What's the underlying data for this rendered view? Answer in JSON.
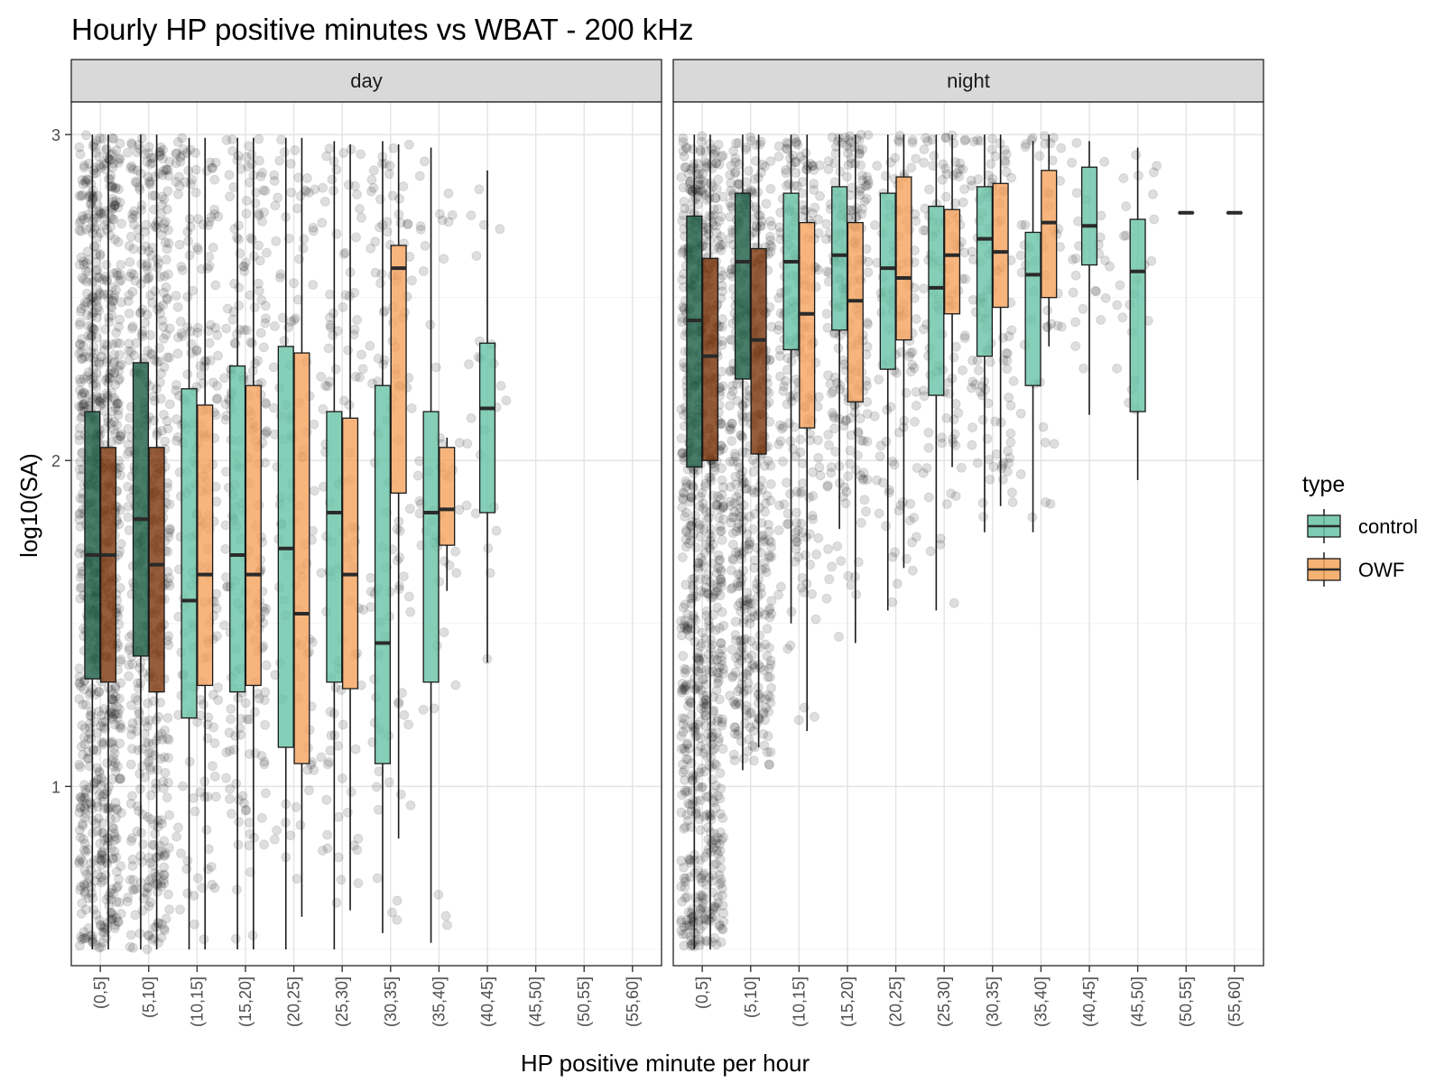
{
  "chart_data": {
    "type": "box",
    "title": "Hourly HP positive minutes vs WBAT - 200 kHz",
    "xlabel": "HP positive minute per hour",
    "ylabel": "log10(SA)",
    "ylim": [
      0.45,
      3.1
    ],
    "y_ticks": [
      1,
      2,
      3
    ],
    "categories": [
      "(0,5]",
      "(5,10]",
      "(10,15]",
      "(15,20]",
      "(20,25]",
      "(25,30]",
      "(30,35]",
      "(35,40]",
      "(40,45]",
      "(45,50]",
      "(50,55]",
      "(55,60]"
    ],
    "grid": true,
    "jitter_points": true,
    "legend": {
      "title": "type",
      "position": "right",
      "entries": [
        {
          "name": "control",
          "color": "#66c2a5"
        },
        {
          "name": "OWF",
          "color": "#f5a35c"
        }
      ]
    },
    "panels": [
      {
        "name": "day",
        "series": [
          {
            "name": "control",
            "boxes": [
              {
                "cat": "(0,5]",
                "min": 0.5,
                "q1": 1.33,
                "median": 1.71,
                "q3": 2.15,
                "max": 3.0
              },
              {
                "cat": "(5,10]",
                "min": 0.5,
                "q1": 1.4,
                "median": 1.82,
                "q3": 2.3,
                "max": 3.0
              },
              {
                "cat": "(10,15]",
                "min": 0.5,
                "q1": 1.21,
                "median": 1.57,
                "q3": 2.22,
                "max": 2.99
              },
              {
                "cat": "(15,20]",
                "min": 0.5,
                "q1": 1.29,
                "median": 1.71,
                "q3": 2.29,
                "max": 2.99
              },
              {
                "cat": "(20,25]",
                "min": 0.5,
                "q1": 1.12,
                "median": 1.73,
                "q3": 2.35,
                "max": 2.99
              },
              {
                "cat": "(25,30]",
                "min": 0.5,
                "q1": 1.32,
                "median": 1.84,
                "q3": 2.15,
                "max": 2.98
              },
              {
                "cat": "(30,35]",
                "min": 0.55,
                "q1": 1.07,
                "median": 1.44,
                "q3": 2.23,
                "max": 2.98
              },
              {
                "cat": "(35,40]",
                "min": 0.52,
                "q1": 1.32,
                "median": 1.84,
                "q3": 2.15,
                "max": 2.96
              },
              {
                "cat": "(40,45]",
                "min": 1.38,
                "q1": 1.84,
                "median": 2.16,
                "q3": 2.36,
                "max": 2.89
              }
            ]
          },
          {
            "name": "OWF",
            "boxes": [
              {
                "cat": "(0,5]",
                "min": 0.5,
                "q1": 1.32,
                "median": 1.71,
                "q3": 2.04,
                "max": 3.0
              },
              {
                "cat": "(5,10]",
                "min": 0.5,
                "q1": 1.29,
                "median": 1.68,
                "q3": 2.04,
                "max": 3.0
              },
              {
                "cat": "(10,15]",
                "min": 0.5,
                "q1": 1.31,
                "median": 1.65,
                "q3": 2.17,
                "max": 2.99
              },
              {
                "cat": "(15,20]",
                "min": 0.5,
                "q1": 1.31,
                "median": 1.65,
                "q3": 2.23,
                "max": 2.99
              },
              {
                "cat": "(20,25]",
                "min": 0.6,
                "q1": 1.07,
                "median": 1.53,
                "q3": 2.33,
                "max": 2.99
              },
              {
                "cat": "(25,30]",
                "min": 0.62,
                "q1": 1.3,
                "median": 1.65,
                "q3": 2.13,
                "max": 2.97
              },
              {
                "cat": "(30,35]",
                "min": 0.84,
                "q1": 1.9,
                "median": 2.59,
                "q3": 2.66,
                "max": 2.97
              },
              {
                "cat": "(35,40]",
                "min": 1.6,
                "q1": 1.74,
                "median": 1.85,
                "q3": 2.04,
                "max": 2.07
              }
            ]
          }
        ]
      },
      {
        "name": "night",
        "series": [
          {
            "name": "control",
            "boxes": [
              {
                "cat": "(0,5]",
                "min": 0.5,
                "q1": 1.98,
                "median": 2.43,
                "q3": 2.75,
                "max": 3.0
              },
              {
                "cat": "(5,10]",
                "min": 1.05,
                "q1": 2.25,
                "median": 2.61,
                "q3": 2.82,
                "max": 3.0
              },
              {
                "cat": "(10,15]",
                "min": 1.5,
                "q1": 2.34,
                "median": 2.61,
                "q3": 2.82,
                "max": 3.0
              },
              {
                "cat": "(15,20]",
                "min": 1.79,
                "q1": 2.4,
                "median": 2.63,
                "q3": 2.84,
                "max": 3.0
              },
              {
                "cat": "(20,25]",
                "min": 1.54,
                "q1": 2.28,
                "median": 2.59,
                "q3": 2.82,
                "max": 3.0
              },
              {
                "cat": "(25,30]",
                "min": 1.54,
                "q1": 2.2,
                "median": 2.53,
                "q3": 2.78,
                "max": 3.0
              },
              {
                "cat": "(30,35]",
                "min": 1.78,
                "q1": 2.32,
                "median": 2.68,
                "q3": 2.84,
                "max": 3.0
              },
              {
                "cat": "(35,40]",
                "min": 1.78,
                "q1": 2.23,
                "median": 2.57,
                "q3": 2.7,
                "max": 2.98
              },
              {
                "cat": "(40,45]",
                "min": 2.14,
                "q1": 2.6,
                "median": 2.72,
                "q3": 2.9,
                "max": 2.98
              },
              {
                "cat": "(45,50]",
                "min": 1.94,
                "q1": 2.15,
                "median": 2.58,
                "q3": 2.74,
                "max": 2.96
              },
              {
                "cat": "(50,55]",
                "min": 2.76,
                "q1": 2.76,
                "median": 2.76,
                "q3": 2.76,
                "max": 2.76
              },
              {
                "cat": "(55,60]",
                "min": 2.76,
                "q1": 2.76,
                "median": 2.76,
                "q3": 2.76,
                "max": 2.76
              }
            ]
          },
          {
            "name": "OWF",
            "boxes": [
              {
                "cat": "(0,5]",
                "min": 0.5,
                "q1": 2.0,
                "median": 2.32,
                "q3": 2.62,
                "max": 3.0
              },
              {
                "cat": "(5,10]",
                "min": 1.12,
                "q1": 2.02,
                "median": 2.37,
                "q3": 2.65,
                "max": 3.0
              },
              {
                "cat": "(10,15]",
                "min": 1.17,
                "q1": 2.1,
                "median": 2.45,
                "q3": 2.73,
                "max": 3.0
              },
              {
                "cat": "(15,20]",
                "min": 1.44,
                "q1": 2.18,
                "median": 2.49,
                "q3": 2.73,
                "max": 3.0
              },
              {
                "cat": "(20,25]",
                "min": 1.67,
                "q1": 2.37,
                "median": 2.56,
                "q3": 2.87,
                "max": 3.0
              },
              {
                "cat": "(25,30]",
                "min": 1.98,
                "q1": 2.45,
                "median": 2.63,
                "q3": 2.77,
                "max": 3.0
              },
              {
                "cat": "(30,35]",
                "min": 1.86,
                "q1": 2.47,
                "median": 2.64,
                "q3": 2.85,
                "max": 3.0
              },
              {
                "cat": "(35,40]",
                "min": 2.35,
                "q1": 2.5,
                "median": 2.73,
                "q3": 2.89,
                "max": 3.0
              }
            ]
          }
        ]
      }
    ]
  }
}
